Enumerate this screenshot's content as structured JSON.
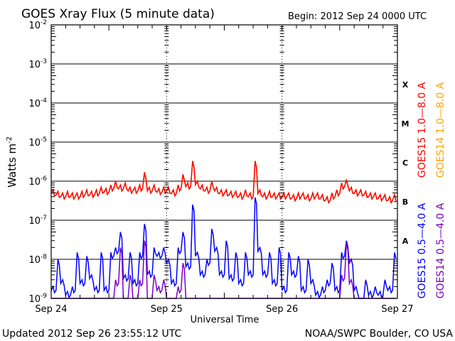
{
  "header": {
    "title": "GOES Xray Flux (5 minute data)",
    "begin": "Begin:  2012 Sep 24 0000 UTC"
  },
  "footer": {
    "updated": "Updated 2012 Sep 26 23:55:12 UTC",
    "credit": "NOAA/SWPC Boulder, CO USA"
  },
  "chart_data": {
    "type": "line",
    "title": "GOES Xray Flux (5 minute data)",
    "xlabel": "Universal Time",
    "ylabel": "Watts m-2",
    "ylabel_base": "Watts m",
    "ylabel_exp": "-2",
    "yscale": "log",
    "ylim": [
      1e-09,
      0.01
    ],
    "xlim_hours": [
      0,
      72
    ],
    "x_ticks": [
      {
        "hour": 0,
        "label": "Sep 24"
      },
      {
        "hour": 24,
        "label": "Sep 25"
      },
      {
        "hour": 48,
        "label": "Sep 26"
      },
      {
        "hour": 72,
        "label": "Sep 27"
      }
    ],
    "y_ticks": [
      {
        "value": 0.01,
        "base": "10",
        "exp": "-2"
      },
      {
        "value": 0.001,
        "base": "10",
        "exp": "-3"
      },
      {
        "value": 0.0001,
        "base": "10",
        "exp": "-4"
      },
      {
        "value": 1e-05,
        "base": "10",
        "exp": "-5"
      },
      {
        "value": 1e-06,
        "base": "10",
        "exp": "-6"
      },
      {
        "value": 1e-07,
        "base": "10",
        "exp": "-7"
      },
      {
        "value": 1e-08,
        "base": "10",
        "exp": "-8"
      },
      {
        "value": 1e-09,
        "base": "10",
        "exp": "-9"
      }
    ],
    "flare_classes": [
      {
        "label": "X",
        "value": 0.0003
      },
      {
        "label": "M",
        "value": 3e-05
      },
      {
        "label": "C",
        "value": 3e-06
      },
      {
        "label": "B",
        "value": 3e-07
      },
      {
        "label": "A",
        "value": 3e-08
      }
    ],
    "x_step_hours": 1,
    "series": [
      {
        "name": "GOES15 0.5-4.0 A",
        "color": "#0000ff",
        "values": [
          2e-09,
          1e-08,
          3e-09,
          1.5e-09,
          2e-09,
          1.5e-08,
          3e-09,
          1.2e-08,
          4e-09,
          2e-09,
          1.5e-08,
          2e-09,
          1.5e-08,
          2e-08,
          5e-08,
          4e-09,
          1.5e-08,
          3e-09,
          1.5e-08,
          8e-08,
          5e-09,
          2e-08,
          1.5e-08,
          2e-08,
          1e-08,
          3e-09,
          2e-08,
          5e-08,
          8e-09,
          2.5e-07,
          1.5e-08,
          5e-09,
          1e-08,
          6e-08,
          2e-08,
          5e-09,
          3e-08,
          4e-09,
          1.5e-08,
          3e-09,
          1.5e-08,
          5e-09,
          3.8e-07,
          2e-08,
          5e-09,
          1.5e-08,
          3e-09,
          2e-08,
          2e-09,
          1.5e-08,
          5e-09,
          1.2e-08,
          2e-09,
          1e-08,
          3e-09,
          1.5e-09,
          2e-09,
          3e-09,
          8e-09,
          2e-09,
          1.5e-08,
          3e-08,
          1e-08,
          2e-09,
          1e-09,
          3e-09,
          1.5e-09,
          2e-09,
          1.5e-09,
          3e-09,
          2e-09,
          1.5e-08
        ]
      },
      {
        "name": "GOES14 0.5-4.0 A",
        "color": "#7a00c8",
        "values": [
          1e-09,
          1e-09,
          1e-09,
          1e-09,
          1e-09,
          1e-09,
          1e-09,
          1e-09,
          1e-09,
          1e-09,
          1e-09,
          1e-09,
          1e-09,
          3e-09,
          2e-08,
          1e-09,
          4e-09,
          1e-09,
          3e-09,
          3e-08,
          1e-09,
          4e-09,
          2e-09,
          3e-09,
          1e-09,
          1e-09,
          2e-09,
          8e-09,
          1e-09,
          1e-09,
          1e-09,
          1e-09,
          1e-09,
          1e-09,
          1e-09,
          1e-09,
          1e-09,
          1e-09,
          1e-09,
          1e-09,
          1e-09,
          1e-09,
          1e-09,
          1e-09,
          1e-09,
          1e-09,
          1e-09,
          1e-09,
          1e-09,
          1e-09,
          1e-09,
          1e-09,
          1e-09,
          1e-09,
          1e-09,
          1e-09,
          1e-09,
          1e-09,
          1e-09,
          1e-09,
          4e-09,
          2.5e-08,
          3e-09,
          1e-09,
          1e-09,
          1e-09,
          1e-09,
          1e-09,
          1e-09,
          1e-09,
          1e-09,
          1e-09
        ]
      },
      {
        "name": "GOES14 1.0-8.0 A",
        "color": "#ffa500",
        "values": [
          6e-07,
          5.5e-07,
          5e-07,
          5.5e-07,
          5e-07,
          5e-07,
          5.5e-07,
          6e-07,
          5.5e-07,
          6e-07,
          7e-07,
          6.5e-07,
          8e-07,
          9.5e-07,
          8e-07,
          9e-07,
          7e-07,
          7e-07,
          8e-07,
          1.5e-06,
          7e-07,
          8e-07,
          6.5e-07,
          7e-07,
          7e-07,
          6e-07,
          8e-07,
          1.4e-06,
          9e-07,
          3e-06,
          1e-06,
          8e-07,
          7e-07,
          1e-06,
          7e-07,
          6e-07,
          6e-07,
          5.5e-07,
          5.5e-07,
          5e-07,
          6e-07,
          5e-07,
          3e-06,
          6e-07,
          5e-07,
          5.5e-07,
          5e-07,
          5e-07,
          5e-07,
          5e-07,
          4.5e-07,
          5e-07,
          5e-07,
          4.5e-07,
          5e-07,
          5e-07,
          4.5e-07,
          4e-07,
          5e-07,
          6e-07,
          9e-07,
          1.05e-06,
          7e-07,
          6e-07,
          6e-07,
          5.5e-07,
          5e-07,
          5e-07,
          4.5e-07,
          4.5e-07,
          4e-07,
          4.5e-07
        ]
      },
      {
        "name": "GOES15 1.0-8.0 A",
        "color": "#ff0000",
        "values": [
          6e-07,
          5.5e-07,
          5e-07,
          5.5e-07,
          5e-07,
          5e-07,
          5.5e-07,
          6e-07,
          5.5e-07,
          6e-07,
          7e-07,
          6.5e-07,
          8e-07,
          1e-06,
          8e-07,
          9e-07,
          7e-07,
          7e-07,
          8e-07,
          1.7e-06,
          7e-07,
          8e-07,
          6.5e-07,
          7e-07,
          7e-07,
          6e-07,
          8e-07,
          1.5e-06,
          9e-07,
          3.3e-06,
          1e-06,
          8e-07,
          7e-07,
          1e-06,
          7e-07,
          6e-07,
          6e-07,
          5.5e-07,
          5.5e-07,
          5e-07,
          6e-07,
          5e-07,
          3.3e-06,
          6e-07,
          5e-07,
          5.5e-07,
          5e-07,
          5e-07,
          5e-07,
          5e-07,
          4.5e-07,
          5e-07,
          5e-07,
          4.5e-07,
          5e-07,
          5e-07,
          4.5e-07,
          4e-07,
          5e-07,
          6e-07,
          9e-07,
          1.1e-06,
          7e-07,
          6e-07,
          6e-07,
          5.5e-07,
          5e-07,
          5e-07,
          4.5e-07,
          4.5e-07,
          4e-07,
          4.5e-07
        ]
      }
    ],
    "legend": [
      {
        "label": "GOES15 1.0—8.0 A",
        "color": "#ff0000"
      },
      {
        "label": "GOES14 1.0—8.0 A",
        "color": "#ffa500"
      },
      {
        "label": "GOES15 0.5—4.0 A",
        "color": "#0000ff"
      },
      {
        "label": "GOES14 0.5—4.0 A",
        "color": "#7a00c8"
      }
    ],
    "legend_placement": "right",
    "grid": "horizontal at decades, dotted verticals at day boundaries"
  }
}
